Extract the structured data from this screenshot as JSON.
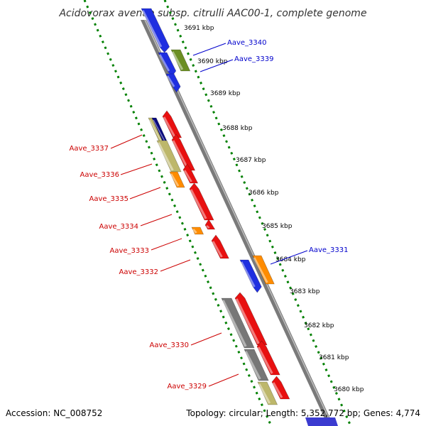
{
  "title": "Acidovorax avenae subsp. citrulli AAC00-1, complete genome",
  "accession": "Accession: NC_008752",
  "summary": "Topology: circular; Length: 5,352,772 bp; Genes: 4,774",
  "kbp_ticks": [
    "3691 kbp",
    "3690 kbp",
    "3689 kbp",
    "3688 kbp",
    "3687 kbp",
    "3686 kbp",
    "3685 kbp",
    "3684 kbp",
    "3683 kbp",
    "3682 kbp",
    "3681 kbp",
    "3680 kbp"
  ],
  "gene_labels": {
    "aave_3340": "Aave_3340",
    "aave_3339": "Aave_3339",
    "aave_3337": "Aave_3337",
    "aave_3336": "Aave_3336",
    "aave_3335": "Aave_3335",
    "aave_3334": "Aave_3334",
    "aave_3333": "Aave_3333",
    "aave_3332": "Aave_3332",
    "aave_3331": "Aave_3331",
    "aave_3330": "Aave_3330",
    "aave_3329": "Aave_3329"
  },
  "colors": {
    "forward_label": "#0000cc",
    "reverse_label": "#cc0000",
    "cds_blue": "#1f2fe0",
    "cds_red": "#e81010",
    "cds_orange": "#ff8c00",
    "cds_olive": "#6b8e23",
    "cds_khaki": "#bdb76b",
    "cds_gray": "#777777",
    "cds_navy": "#0a0a80",
    "backbone": "#888888",
    "ruler_dots": "#008000"
  }
}
